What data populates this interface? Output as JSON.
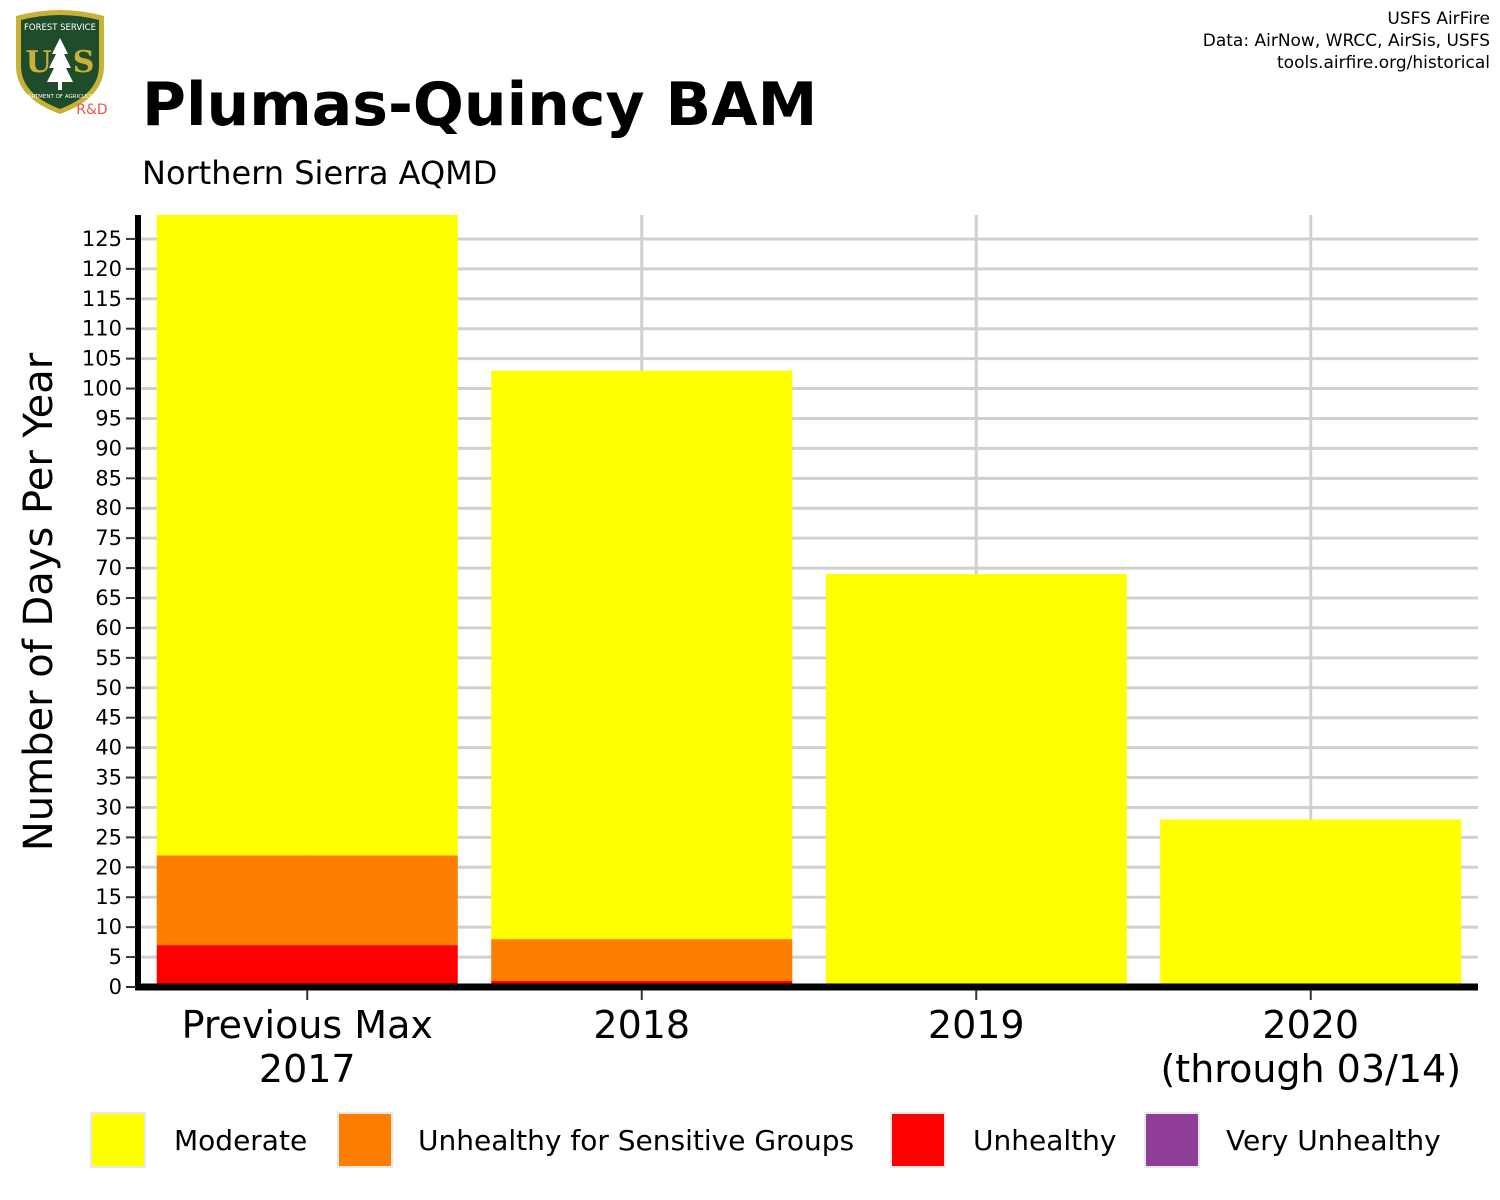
{
  "header": {
    "title": "Plumas-Quincy BAM",
    "subtitle": "Northern Sierra AQMD",
    "credits": [
      "USFS AirFire",
      "Data: AirNow, WRCC, AirSis, USFS",
      "tools.airfire.org/historical"
    ]
  },
  "logo": {
    "top_text": "FOREST SERVICE",
    "letters": "U  S",
    "bottom_text": "DEPARTMENT OF AGRICULTURE",
    "badge": "R&D",
    "colors": {
      "shield": "#1f4d2b",
      "rim": "#c9b037",
      "badge": "#e8574b"
    }
  },
  "chart_data": {
    "type": "bar",
    "stacked": true,
    "categories": [
      "Previous Max\n2017",
      "2018",
      "2019",
      "2020\n(through 03/14)"
    ],
    "ylabel": "Number of Days Per Year",
    "ylim": [
      0,
      129
    ],
    "yticks": [
      0,
      5,
      10,
      15,
      20,
      25,
      30,
      35,
      40,
      45,
      50,
      55,
      60,
      65,
      70,
      75,
      80,
      85,
      90,
      95,
      100,
      105,
      110,
      115,
      120,
      125
    ],
    "grid": true,
    "legend_position": "bottom",
    "series": [
      {
        "name": "Very Unhealthy",
        "color": "#8f3f97",
        "values": [
          0,
          0,
          0,
          0
        ]
      },
      {
        "name": "Unhealthy",
        "color": "#ff0000",
        "values": [
          7,
          1,
          0,
          0
        ]
      },
      {
        "name": "Unhealthy for Sensitive Groups",
        "color": "#ff7e00",
        "values": [
          15,
          7,
          0,
          0
        ]
      },
      {
        "name": "Moderate",
        "color": "#ffff00",
        "values": [
          107,
          95,
          69,
          28
        ]
      }
    ],
    "legend_order": [
      "Moderate",
      "Unhealthy for Sensitive Groups",
      "Unhealthy",
      "Very Unhealthy"
    ]
  }
}
